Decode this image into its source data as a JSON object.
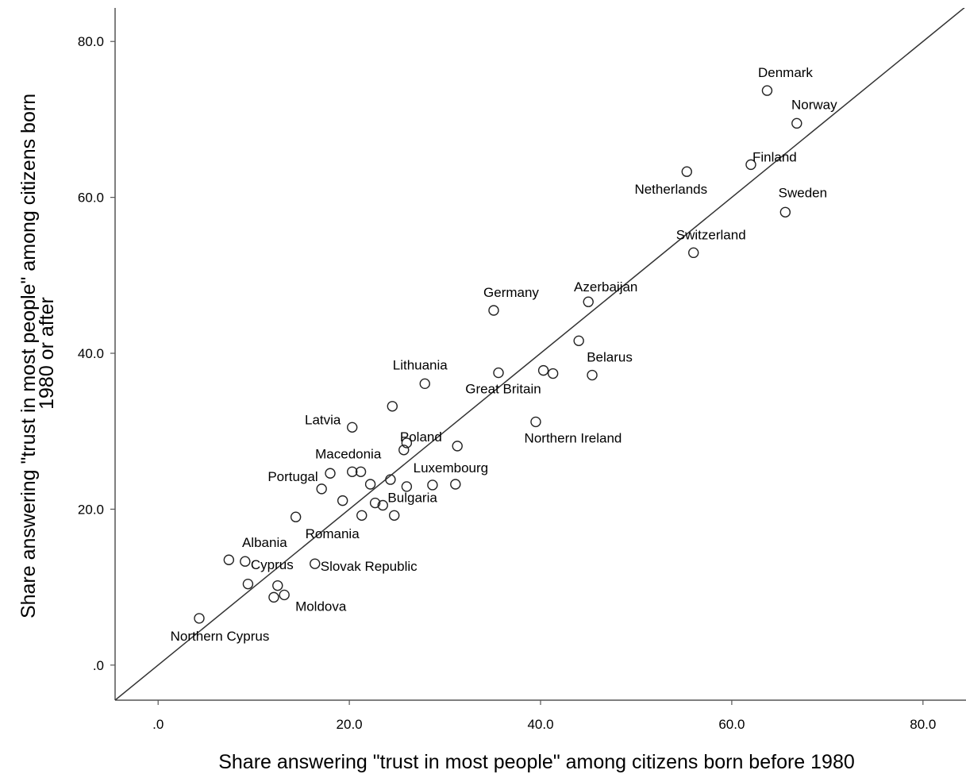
{
  "chart_data": {
    "type": "scatter",
    "title": "",
    "xlabel": "Share answering \"trust in most people\" among citizens born before 1980",
    "ylabel_lines": [
      "Share answering \"trust in most people\" among citizens born",
      "1980 or after"
    ],
    "xlim": [
      -4.5,
      84.5
    ],
    "ylim": [
      -4.5,
      84.3
    ],
    "x_ticks": [
      {
        "value": 0,
        "label": ".0"
      },
      {
        "value": 20,
        "label": "20.0"
      },
      {
        "value": 40,
        "label": "40.0"
      },
      {
        "value": 60,
        "label": "60.0"
      },
      {
        "value": 80,
        "label": "80.0"
      }
    ],
    "y_ticks": [
      {
        "value": 0,
        "label": ".0"
      },
      {
        "value": 20,
        "label": "20.0"
      },
      {
        "value": 40,
        "label": "40.0"
      },
      {
        "value": 60,
        "label": "60.0"
      },
      {
        "value": 80,
        "label": "80.0"
      }
    ],
    "reference_line": {
      "type": "identity",
      "slope": 1,
      "intercept": 0
    },
    "marker": "open-circle",
    "grid": false,
    "legend": "none",
    "points": [
      {
        "x": 63.7,
        "y": 73.7,
        "label": "Denmark"
      },
      {
        "x": 66.8,
        "y": 69.5,
        "label": "Norway"
      },
      {
        "x": 62.0,
        "y": 64.2,
        "label": "Finland"
      },
      {
        "x": 55.3,
        "y": 63.3,
        "label": "Netherlands"
      },
      {
        "x": 65.6,
        "y": 58.1,
        "label": "Sweden"
      },
      {
        "x": 56.0,
        "y": 52.9,
        "label": "Switzerland"
      },
      {
        "x": 45.0,
        "y": 46.6,
        "label": "Azerbaijan"
      },
      {
        "x": 35.1,
        "y": 45.5,
        "label": "Germany"
      },
      {
        "x": 44.0,
        "y": 41.6,
        "label": ""
      },
      {
        "x": 45.4,
        "y": 37.2,
        "label": "Belarus"
      },
      {
        "x": 41.3,
        "y": 37.4,
        "label": ""
      },
      {
        "x": 40.3,
        "y": 37.8,
        "label": ""
      },
      {
        "x": 35.6,
        "y": 37.5,
        "label": "Great Britain"
      },
      {
        "x": 27.9,
        "y": 36.1,
        "label": "Lithuania"
      },
      {
        "x": 24.5,
        "y": 33.2,
        "label": ""
      },
      {
        "x": 39.5,
        "y": 31.2,
        "label": "Northern Ireland"
      },
      {
        "x": 20.3,
        "y": 30.5,
        "label": "Latvia"
      },
      {
        "x": 26.0,
        "y": 28.5,
        "label": "Poland"
      },
      {
        "x": 31.3,
        "y": 28.1,
        "label": ""
      },
      {
        "x": 25.7,
        "y": 27.6,
        "label": ""
      },
      {
        "x": 18.0,
        "y": 24.6,
        "label": "Portugal"
      },
      {
        "x": 20.3,
        "y": 24.8,
        "label": "Macedonia"
      },
      {
        "x": 21.2,
        "y": 24.8,
        "label": ""
      },
      {
        "x": 24.3,
        "y": 23.8,
        "label": ""
      },
      {
        "x": 26.0,
        "y": 22.9,
        "label": ""
      },
      {
        "x": 28.7,
        "y": 23.1,
        "label": "Luxembourg"
      },
      {
        "x": 31.1,
        "y": 23.2,
        "label": ""
      },
      {
        "x": 22.2,
        "y": 23.2,
        "label": ""
      },
      {
        "x": 17.1,
        "y": 22.6,
        "label": ""
      },
      {
        "x": 19.3,
        "y": 21.1,
        "label": ""
      },
      {
        "x": 22.7,
        "y": 20.8,
        "label": "Bulgaria"
      },
      {
        "x": 23.5,
        "y": 20.5,
        "label": ""
      },
      {
        "x": 14.4,
        "y": 19.0,
        "label": "Romania"
      },
      {
        "x": 21.3,
        "y": 19.2,
        "label": ""
      },
      {
        "x": 24.7,
        "y": 19.2,
        "label": ""
      },
      {
        "x": 7.4,
        "y": 13.5,
        "label": "Albania"
      },
      {
        "x": 9.1,
        "y": 13.3,
        "label": "Cyprus"
      },
      {
        "x": 16.4,
        "y": 13.0,
        "label": "Slovak Republic"
      },
      {
        "x": 9.4,
        "y": 10.4,
        "label": ""
      },
      {
        "x": 12.5,
        "y": 10.2,
        "label": ""
      },
      {
        "x": 13.2,
        "y": 9.0,
        "label": "Moldova"
      },
      {
        "x": 12.1,
        "y": 8.7,
        "label": ""
      },
      {
        "x": 4.3,
        "y": 6.0,
        "label": "Northern Cyprus"
      }
    ]
  }
}
